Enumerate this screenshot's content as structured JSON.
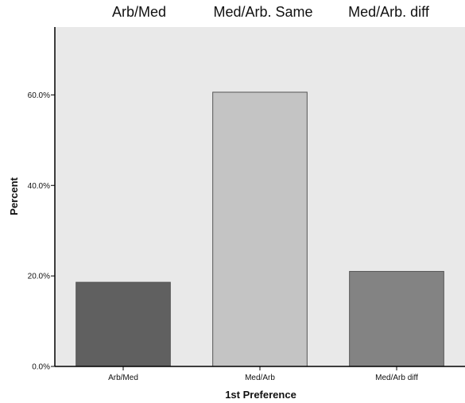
{
  "header_labels": [
    "Arb/Med",
    "Med/Arb. Same",
    "Med/Arb. diff"
  ],
  "chart_data": {
    "type": "bar",
    "categories": [
      "Arb/Med",
      "Med/Arb",
      "Med/Arb diff"
    ],
    "values": [
      18.6,
      60.6,
      21.0
    ],
    "value_unit": "percent",
    "xlabel": "1st Preference",
    "ylabel": "Percent",
    "ylim": [
      0,
      75
    ],
    "yticks": [
      0,
      20,
      40,
      60
    ],
    "ytick_labels": [
      "0.0%",
      "20.0%",
      "40.0%",
      "60.0%"
    ],
    "grid": false,
    "legend": "none",
    "plot_background": "#e9e9e9",
    "bar_colors": [
      "#606060",
      "#c4c4c4",
      "#838383"
    ]
  }
}
